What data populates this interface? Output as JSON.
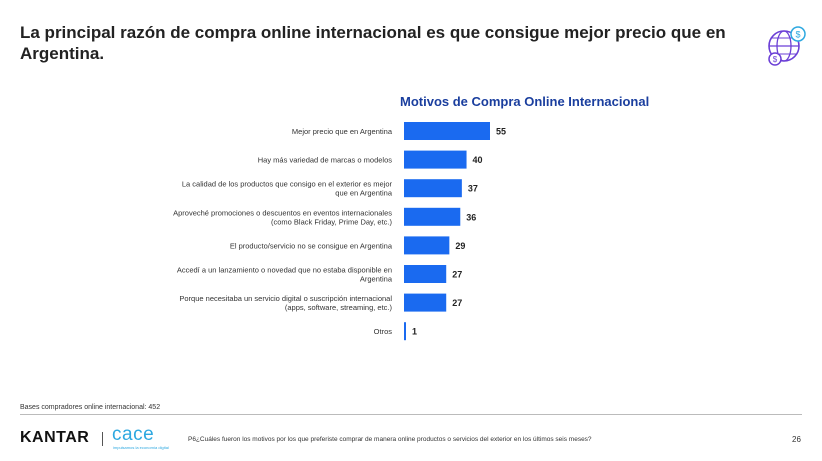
{
  "slide": {
    "title": "La principal razón de compra online internacional es que consigue mejor precio que en Argentina.",
    "bases": "Bases compradores online internacional: 452",
    "footnote": "P6¿Cuáles fueron los motivos por los que preferiste comprar de manera online productos o servicios del exterior en los últimos seis meses?",
    "page_number": "26",
    "brand_kantar": "KANTAR",
    "brand_cace": "cace",
    "brand_cace_tagline": "impulsamos la economía digital"
  },
  "chart_data": {
    "type": "bar",
    "orientation": "horizontal",
    "title": "Motivos de Compra Online Internacional",
    "bar_color": "#1a6af0",
    "categories": [
      [
        "Mejor precio que en Argentina"
      ],
      [
        "Hay más variedad de marcas o modelos"
      ],
      [
        "La calidad de los productos que consigo en el exterior es mejor",
        "que en Argentina"
      ],
      [
        "Aproveché promociones o descuentos en eventos internacionales",
        "(como Black Friday, Prime Day, etc.)"
      ],
      [
        "El producto/servicio no se consigue en Argentina"
      ],
      [
        "Accedí a un lanzamiento o novedad que no estaba disponible en",
        "Argentina"
      ],
      [
        "Porque necesitaba un servicio digital o suscripción internacional",
        "(apps, software, streaming, etc.)"
      ],
      [
        "Otros"
      ]
    ],
    "values": [
      55,
      40,
      37,
      36,
      29,
      27,
      27,
      1
    ],
    "xlim": [
      0,
      55
    ],
    "grid": false,
    "legend": "none"
  }
}
